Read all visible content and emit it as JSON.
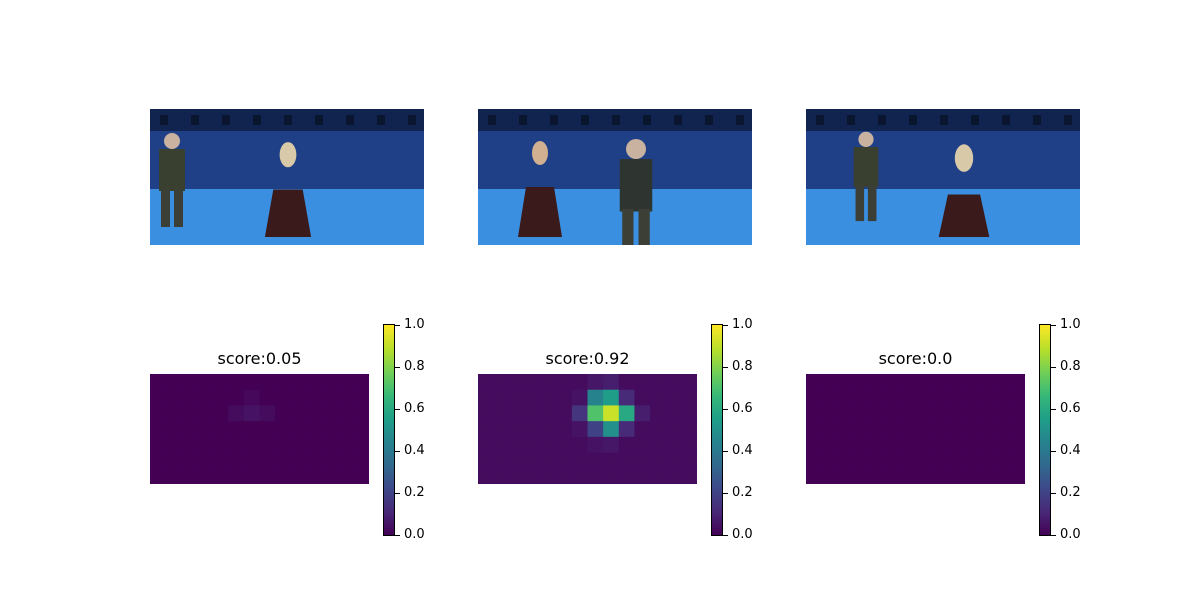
{
  "colormap": [
    "#440154",
    "#482878",
    "#3e4989",
    "#31688e",
    "#26828e",
    "#1f9e89",
    "#35b779",
    "#6ece58",
    "#b5de2b",
    "#fde725"
  ],
  "photos": [
    {
      "description_icon": "photo-two-people-studio"
    },
    {
      "description_icon": "photo-two-people-studio"
    },
    {
      "description_icon": "photo-two-people-studio"
    }
  ],
  "chart_data": [
    {
      "type": "heatmap",
      "title": "score:0.05",
      "colorbar_ticks": [
        "0.0",
        "0.2",
        "0.4",
        "0.6",
        "0.8",
        "1.0"
      ],
      "vmin": 0,
      "vmax": 1,
      "rows": 7,
      "cols": 14,
      "hot_cells": [
        [
          2,
          5,
          0.03
        ],
        [
          2,
          6,
          0.05
        ],
        [
          2,
          7,
          0.03
        ],
        [
          1,
          6,
          0.02
        ]
      ],
      "background": 0.0
    },
    {
      "type": "heatmap",
      "title": "score:0.92",
      "colorbar_ticks": [
        "0.0",
        "0.2",
        "0.4",
        "0.6",
        "0.8",
        "1.0"
      ],
      "vmin": 0,
      "vmax": 1,
      "rows": 7,
      "cols": 14,
      "hot_cells": [
        [
          1,
          7,
          0.45
        ],
        [
          1,
          8,
          0.55
        ],
        [
          1,
          9,
          0.12
        ],
        [
          2,
          6,
          0.15
        ],
        [
          2,
          7,
          0.72
        ],
        [
          2,
          8,
          0.92
        ],
        [
          2,
          9,
          0.6
        ],
        [
          2,
          10,
          0.08
        ],
        [
          3,
          7,
          0.2
        ],
        [
          3,
          8,
          0.5
        ],
        [
          3,
          9,
          0.12
        ],
        [
          0,
          7,
          0.06
        ],
        [
          0,
          8,
          0.08
        ],
        [
          4,
          8,
          0.06
        ],
        [
          4,
          7,
          0.05
        ],
        [
          1,
          6,
          0.05
        ],
        [
          3,
          6,
          0.05
        ]
      ],
      "background": 0.03
    },
    {
      "type": "heatmap",
      "title": "score:0.0",
      "colorbar_ticks": [
        "0.0",
        "0.2",
        "0.4",
        "0.6",
        "0.8",
        "1.0"
      ],
      "vmin": 0,
      "vmax": 1,
      "rows": 7,
      "cols": 14,
      "hot_cells": [],
      "background": 0.0
    }
  ]
}
